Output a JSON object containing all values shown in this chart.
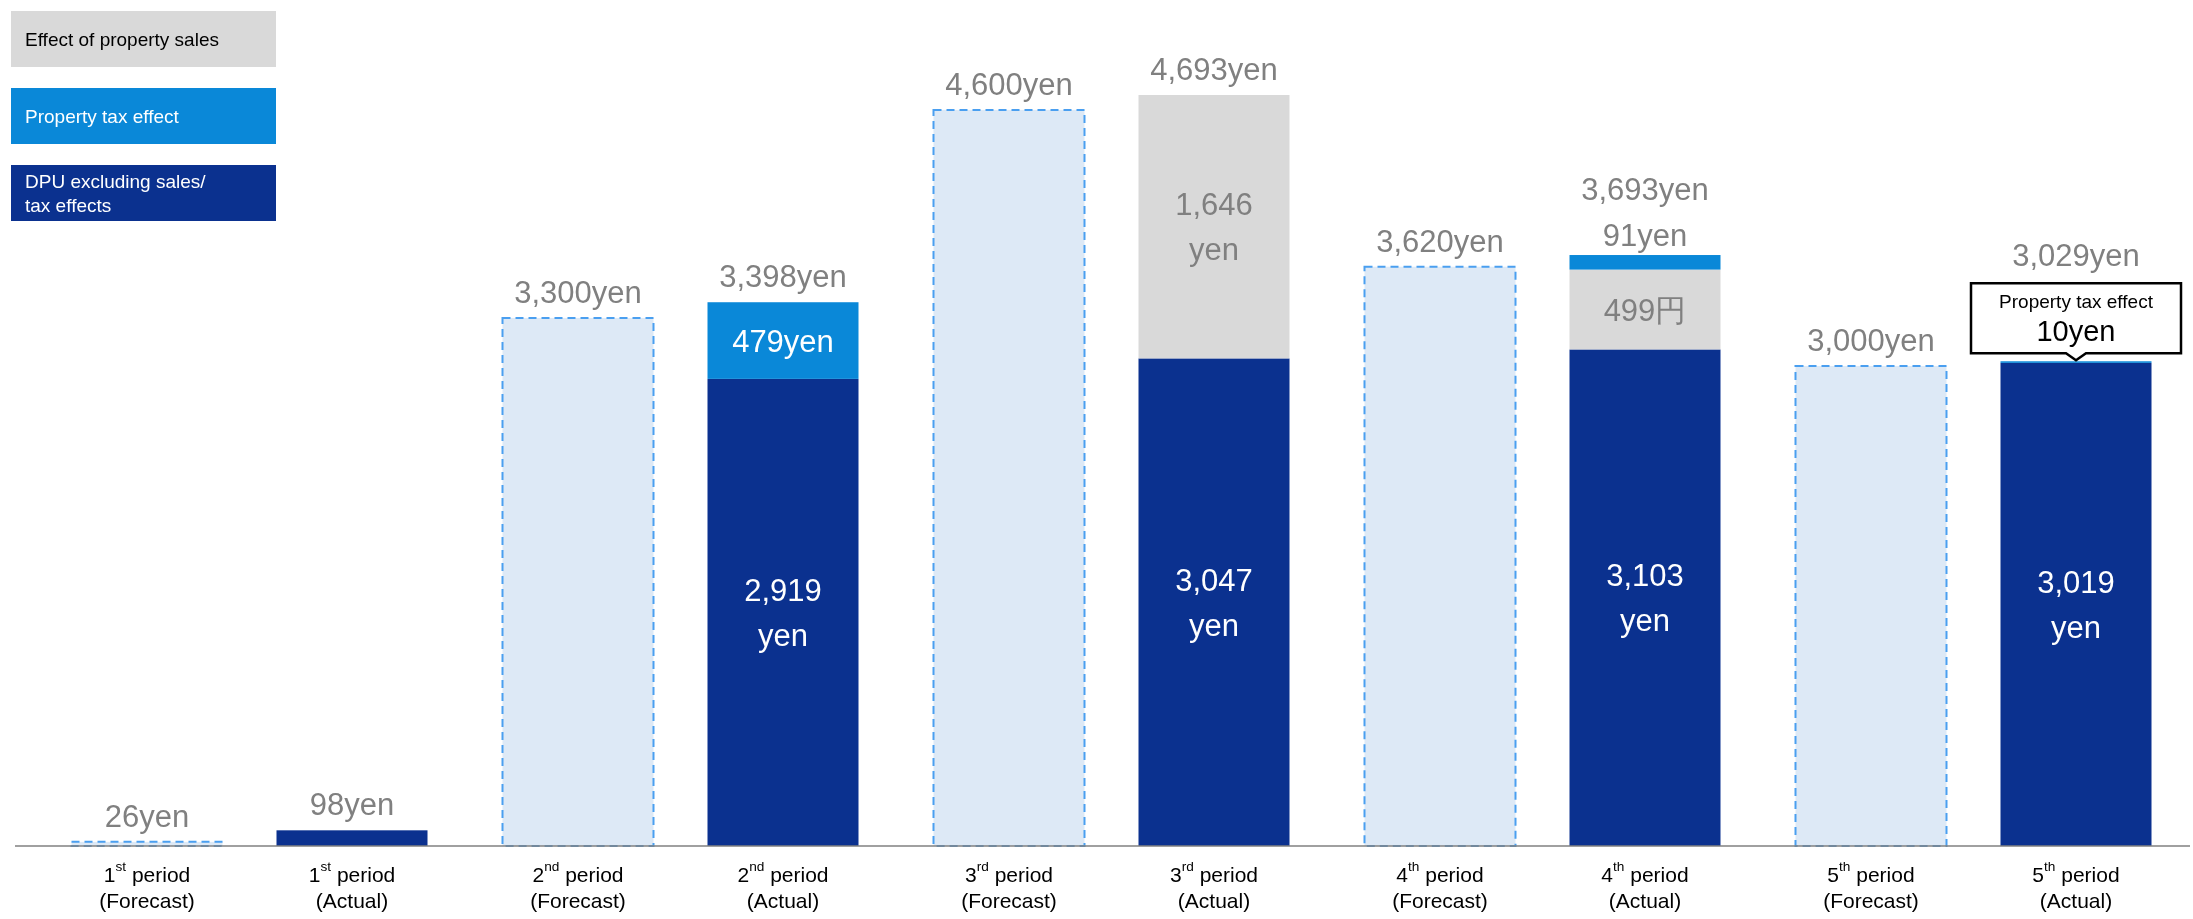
{
  "chart_data": {
    "type": "bar",
    "stacked": true,
    "legend": "top left",
    "categories": [
      "1$^{st}$ period\n(Forecast)",
      "1$^{st}$ period\n(Actual)",
      "2$^{nd}$ period\n(Forecast)",
      "2$^{nd}$ period\n(Actual)",
      "3$^{rd}$ period\n(Forecast)",
      "3$^{rd}$ period\n(Actual)",
      "4$^{th}$ period\n(Forecast)",
      "4$^{th}$ period\n(Actual)",
      "5$^{th}$ period\n(Forecast)",
      "5$^{th}$ period\n(Actual)"
    ],
    "series": [
      {
        "color": "#dde9f6",
        "line_style": "dashed",
        "values": [
          26,
          null,
          3300,
          null,
          4600,
          null,
          3620,
          null,
          3000,
          null
        ],
        "value_labels": [
          "26yen",
          null,
          "3,300yen",
          null,
          "4,600yen",
          null,
          "3,620yen",
          null,
          "3,000yen",
          null
        ]
      },
      {
        "name": "DPU excluding sales/\ntax effects",
        "color": "#0b318f",
        "values": [
          null,
          98,
          null,
          2919,
          null,
          3047,
          null,
          3103,
          null,
          3019
        ],
        "value_labels": [
          null,
          null,
          null,
          "2,919\nyen",
          null,
          "3,047\nyen",
          null,
          "3,103\nyen",
          null,
          "3,019\nyen"
        ]
      },
      {
        "name": "Effect of property sales",
        "color": "#d9d9d9",
        "values": [
          null,
          null,
          null,
          null,
          null,
          1646,
          null,
          499,
          null,
          null
        ],
        "value_labels": [
          null,
          null,
          null,
          null,
          null,
          "1,646\nyen",
          null,
          "499円",
          null,
          null
        ]
      },
      {
        "name": "Property tax effect",
        "color": "#0a88d8",
        "values": [
          null,
          null,
          null,
          479,
          null,
          null,
          null,
          91,
          null,
          10
        ],
        "value_labels": [
          null,
          null,
          null,
          "479yen",
          null,
          null,
          null,
          "91yen",
          null,
          "10yen"
        ]
      }
    ],
    "totals": [
      null,
      "98yen",
      null,
      "3,398yen",
      null,
      "4,693yen",
      null,
      "3,693yen",
      null,
      "3,029yen"
    ],
    "annotations": [
      "Property tax effect"
    ]
  }
}
